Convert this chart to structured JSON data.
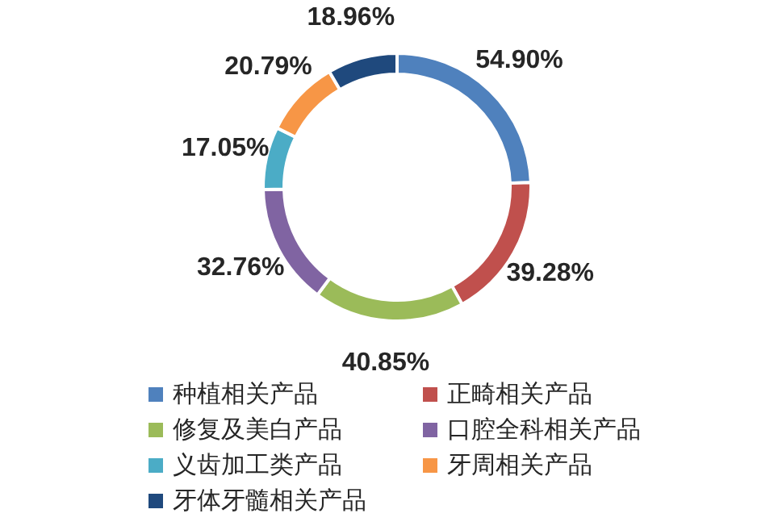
{
  "chart_data": {
    "type": "donut",
    "categories": [
      "种植相关产品",
      "正畸相关产品",
      "修复及美白产品",
      "口腔全科相关产品",
      "义齿加工类产品",
      "牙周相关产品",
      "牙体牙髓相关产品"
    ],
    "values": [
      54.9,
      39.28,
      40.85,
      32.76,
      17.05,
      20.79,
      18.96
    ],
    "value_labels": [
      "54.90%",
      "39.28%",
      "40.85%",
      "32.76%",
      "17.05%",
      "20.79%",
      "18.96%"
    ],
    "colors": [
      "#4f81bd",
      "#c0504d",
      "#9bbb59",
      "#8064a2",
      "#4bacc6",
      "#f79646",
      "#1f497d"
    ],
    "legend": "bottom"
  }
}
